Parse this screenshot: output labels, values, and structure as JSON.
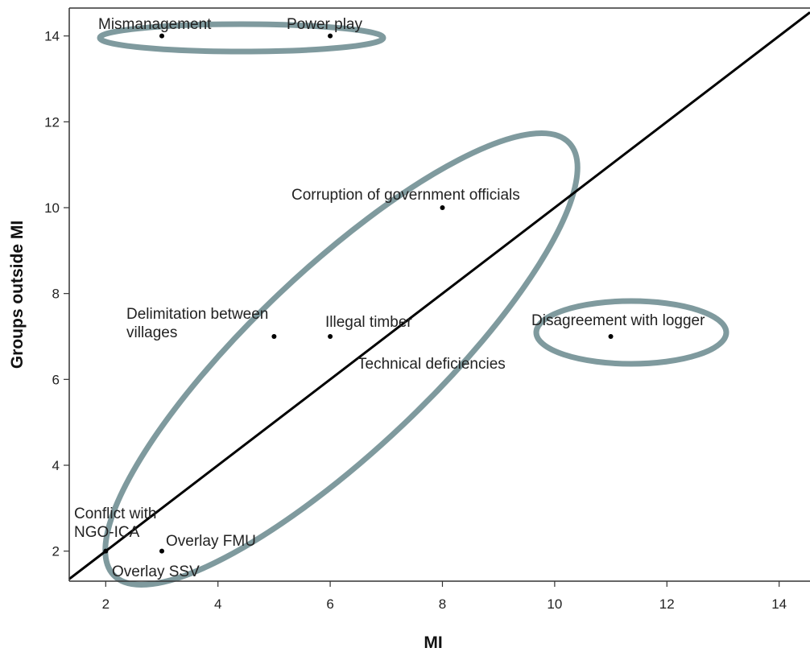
{
  "chart_data": {
    "type": "scatter",
    "title": "",
    "xlabel": "MI",
    "ylabel": "Groups outside MI",
    "xlim": [
      1.35,
      14.55
    ],
    "ylim": [
      1.3,
      14.65
    ],
    "grid": false,
    "x_ticks": [
      2,
      4,
      6,
      8,
      10,
      12,
      14
    ],
    "y_ticks": [
      2,
      4,
      6,
      8,
      10,
      12,
      14
    ],
    "points": [
      {
        "label": [
          "Mismanagement"
        ],
        "x": 3,
        "y": 14
      },
      {
        "label": [
          "Power play"
        ],
        "x": 6,
        "y": 14
      },
      {
        "label": [
          "Corruption of government officials"
        ],
        "x": 8,
        "y": 10
      },
      {
        "label": [
          "Delimitation between",
          "villages"
        ],
        "x": 5,
        "y": 7
      },
      {
        "label": [
          "Illegal timber"
        ],
        "x": 6,
        "y": 7
      },
      {
        "label": [
          "Technical deficiencies"
        ],
        "x": 6,
        "y": 7
      },
      {
        "label": [
          "Disagreement with logger"
        ],
        "x": 11,
        "y": 7
      },
      {
        "label": [
          "Conflict with",
          "NGO-ICA"
        ],
        "x": 2,
        "y": 2
      },
      {
        "label": [
          "Overlay FMU"
        ],
        "x": 3,
        "y": 2
      },
      {
        "label": [
          "Overlay SSV"
        ],
        "x": 2,
        "y": 2
      }
    ],
    "reference_line": {
      "type": "identity",
      "color": "#000000"
    },
    "ellipse_color": "#7f9a9e"
  }
}
